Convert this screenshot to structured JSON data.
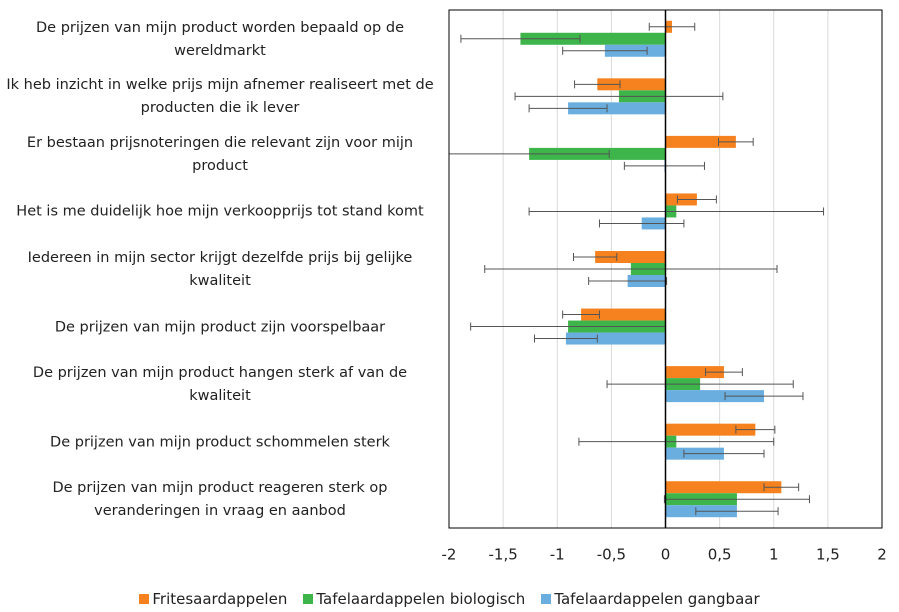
{
  "chart_data": {
    "type": "bar",
    "orientation": "horizontal",
    "categories": [
      "De prijzen van mijn product worden bepaald op de wereldmarkt",
      "Ik heb inzicht in welke prijs mijn afnemer realiseert met de producten die ik lever",
      "Er bestaan prijsnoteringen die relevant zijn voor mijn product",
      "Het is me duidelijk hoe mijn verkoopprijs tot stand komt",
      "Iedereen in mijn sector krijgt dezelfde prijs bij gelijke kwaliteit",
      "De prijzen van mijn product zijn voorspelbaar",
      "De prijzen van mijn product hangen sterk af van de kwaliteit",
      "De prijzen van mijn product schommelen sterk",
      "De prijzen van mijn product reageren sterk op veranderingen in vraag en aanbod"
    ],
    "series": [
      {
        "name": "Fritesaardappelen",
        "color": "#f5821f",
        "values": [
          0.06,
          -0.63,
          0.65,
          0.29,
          -0.65,
          -0.78,
          0.54,
          0.83,
          1.07
        ],
        "errors": [
          0.21,
          0.21,
          0.16,
          0.18,
          0.2,
          0.17,
          0.17,
          0.18,
          0.16
        ]
      },
      {
        "name": "Tafelaardappelen biologisch",
        "color": "#3db54a",
        "values": [
          -1.34,
          -0.43,
          -1.26,
          0.1,
          -0.32,
          -0.9,
          0.32,
          0.1,
          0.66
        ],
        "errors": [
          0.55,
          0.96,
          0.74,
          1.36,
          1.35,
          0.9,
          0.86,
          0.9,
          0.67
        ]
      },
      {
        "name": "Tafelaardappelen gangbaar",
        "color": "#6aaee0",
        "values": [
          -0.56,
          -0.9,
          -0.01,
          -0.22,
          -0.35,
          -0.92,
          0.91,
          0.54,
          0.66
        ],
        "errors": [
          0.39,
          0.36,
          0.37,
          0.39,
          0.36,
          0.29,
          0.36,
          0.37,
          0.38
        ]
      }
    ],
    "xlim": [
      -2,
      2
    ],
    "xticks": [
      -2,
      {
        "value": -1.5,
        "label": "-1,5"
      },
      -1,
      {
        "value": -0.5,
        "label": "-0,5"
      },
      0,
      {
        "value": 0.5,
        "label": "0,5"
      },
      1,
      {
        "value": 1.5,
        "label": "1,5"
      },
      2
    ],
    "grid": true,
    "legend": "bottom"
  }
}
